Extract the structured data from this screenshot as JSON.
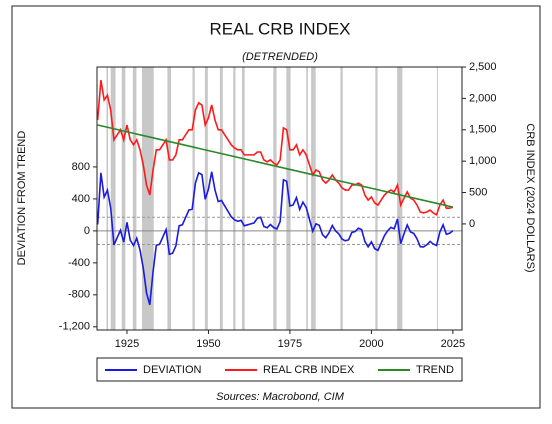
{
  "chart_data": {
    "type": "line",
    "title": "REAL CRB INDEX",
    "subtitle": "(DETRENDED)",
    "y_label": "DEVIATION FROM TREND",
    "y2_label": "CRB INDEX (2024 DOLLARS)",
    "source": "Sources:  Macrobond, CIM",
    "xlim": [
      1915.8,
      2027.8
    ],
    "xticks": [
      1925,
      1950,
      1975,
      2000,
      2025
    ],
    "ylim": [
      -1240,
      2050
    ],
    "yticks": [
      {
        "value": -1200,
        "label": "-1,200"
      },
      -800,
      -400,
      0,
      400,
      800
    ],
    "y2lim": [
      -1690,
      2500
    ],
    "y2ticks": [
      0,
      500,
      {
        "value": 1000,
        "label": "1,000"
      },
      {
        "value": 1500,
        "label": "1,500"
      },
      {
        "value": 2000,
        "label": "2,000"
      },
      {
        "value": 2500,
        "label": "2,500"
      }
    ],
    "dashed_lines": [
      170,
      -170
    ],
    "shaded_periods": [
      [
        1918.7,
        1919.2
      ],
      [
        1920.0,
        1921.5
      ],
      [
        1923.4,
        1924.5
      ],
      [
        1926.8,
        1927.9
      ],
      [
        1929.6,
        1933.2
      ],
      [
        1937.4,
        1938.5
      ],
      [
        1945.1,
        1945.8
      ],
      [
        1948.9,
        1949.8
      ],
      [
        1953.5,
        1954.4
      ],
      [
        1957.6,
        1958.3
      ],
      [
        1960.3,
        1961.1
      ],
      [
        1969.9,
        1970.9
      ],
      [
        1973.9,
        1975.2
      ],
      [
        1980.0,
        1980.5
      ],
      [
        1981.5,
        1982.9
      ],
      [
        1990.5,
        1991.2
      ],
      [
        2001.2,
        2001.9
      ],
      [
        2007.9,
        2009.5
      ],
      [
        2020.1,
        2020.4
      ]
    ],
    "shade_color": "#c8c8c8",
    "x": [
      1916,
      1917,
      1918,
      1919,
      1920,
      1921,
      1922,
      1923,
      1924,
      1925,
      1926,
      1927,
      1928,
      1929,
      1930,
      1931,
      1932,
      1933,
      1934,
      1935,
      1936,
      1937,
      1938,
      1939,
      1940,
      1941,
      1942,
      1943,
      1944,
      1945,
      1946,
      1947,
      1948,
      1949,
      1950,
      1951,
      1952,
      1953,
      1954,
      1955,
      1956,
      1957,
      1958,
      1959,
      1960,
      1961,
      1962,
      1963,
      1964,
      1965,
      1966,
      1967,
      1968,
      1969,
      1970,
      1971,
      1972,
      1973,
      1974,
      1975,
      1976,
      1977,
      1978,
      1979,
      1980,
      1981,
      1982,
      1983,
      1984,
      1985,
      1986,
      1987,
      1988,
      1989,
      1990,
      1991,
      1992,
      1993,
      1994,
      1995,
      1996,
      1997,
      1998,
      1999,
      2000,
      2001,
      2002,
      2003,
      2004,
      2005,
      2006,
      2007,
      2008,
      2009,
      2010,
      2011,
      2012,
      2013,
      2014,
      2015,
      2016,
      2017,
      2018,
      2019,
      2020,
      2021,
      2022,
      2023,
      2024,
      2025
    ],
    "series": [
      {
        "name": "DEVIATION",
        "color": "#1a1ae0",
        "values": [
          80,
          726,
          423,
          510,
          287,
          -176,
          -84,
          8,
          -140,
          107,
          -116,
          -184,
          -92,
          -240,
          -468,
          -776,
          -924,
          -512,
          -180,
          -168,
          -76,
          16,
          -292,
          -280,
          -188,
          64,
          76,
          168,
          260,
          272,
          599,
          726,
          703,
          395,
          522,
          739,
          512,
          368,
          380,
          312,
          244,
          176,
          138,
          120,
          132,
          64,
          76,
          88,
          100,
          158,
          170,
          56,
          38,
          80,
          42,
          24,
          116,
          638,
          620,
          312,
          324,
          416,
          268,
          360,
          292,
          144,
          -4,
          88,
          70,
          -48,
          -86,
          -24,
          68,
          0,
          -38,
          -103,
          -124,
          -112,
          -20,
          -8,
          34,
          16,
          -132,
          -200,
          -138,
          -222,
          -244,
          -152,
          -60,
          2,
          44,
          26,
          148,
          -160,
          -38,
          74,
          -14,
          -32,
          -100,
          -198,
          -201,
          -174,
          -132,
          -165,
          -183,
          -16,
          76,
          -42,
          -30,
          2
        ]
      },
      {
        "name": "REAL CRB INDEX",
        "color": "#ff1a1a",
        "axis": "y2",
        "values": [
          1656,
          2290,
          1975,
          2050,
          1815,
          1340,
          1420,
          1500,
          1340,
          1575,
          1340,
          1260,
          1340,
          1180,
          940,
          620,
          460,
          860,
          1180,
          1180,
          1260,
          1340,
          1020,
          1020,
          1100,
          1340,
          1340,
          1420,
          1500,
          1500,
          1815,
          1930,
          1895,
          1575,
          1690,
          1895,
          1656,
          1500,
          1500,
          1420,
          1340,
          1260,
          1210,
          1180,
          1180,
          1100,
          1100,
          1100,
          1100,
          1146,
          1146,
          1020,
          990,
          1020,
          970,
          940,
          1020,
          1530,
          1500,
          1180,
          1180,
          1260,
          1100,
          1180,
          1100,
          940,
          780,
          860,
          830,
          700,
          650,
          700,
          780,
          700,
          650,
          573,
          540,
          540,
          620,
          620,
          650,
          620,
          460,
          380,
          430,
          334,
          300,
          380,
          460,
          510,
          540,
          510,
          620,
          300,
          410,
          510,
          410,
          380,
          300,
          190,
          175,
          190,
          220,
          175,
          145,
          300,
          380,
          250,
          250,
          270
        ]
      },
      {
        "name": "TREND",
        "color": "#2a8a2a",
        "axis": "y2",
        "values": [
          1576,
          1564,
          1552,
          1540,
          1528,
          1516,
          1504,
          1492,
          1480,
          1468,
          1456,
          1444,
          1432,
          1420,
          1408,
          1396,
          1384,
          1372,
          1360,
          1348,
          1336,
          1324,
          1312,
          1300,
          1288,
          1276,
          1264,
          1252,
          1240,
          1228,
          1216,
          1204,
          1192,
          1180,
          1168,
          1156,
          1144,
          1132,
          1120,
          1108,
          1096,
          1084,
          1072,
          1060,
          1048,
          1036,
          1024,
          1012,
          1000,
          988,
          976,
          964,
          952,
          940,
          928,
          916,
          904,
          892,
          880,
          868,
          856,
          844,
          832,
          820,
          808,
          796,
          784,
          772,
          760,
          748,
          736,
          724,
          712,
          700,
          688,
          676,
          664,
          652,
          640,
          628,
          616,
          604,
          592,
          580,
          568,
          556,
          544,
          532,
          520,
          508,
          496,
          484,
          472,
          460,
          448,
          436,
          424,
          412,
          400,
          388,
          376,
          364,
          352,
          340,
          328,
          316,
          304,
          292,
          280,
          268
        ]
      }
    ]
  }
}
